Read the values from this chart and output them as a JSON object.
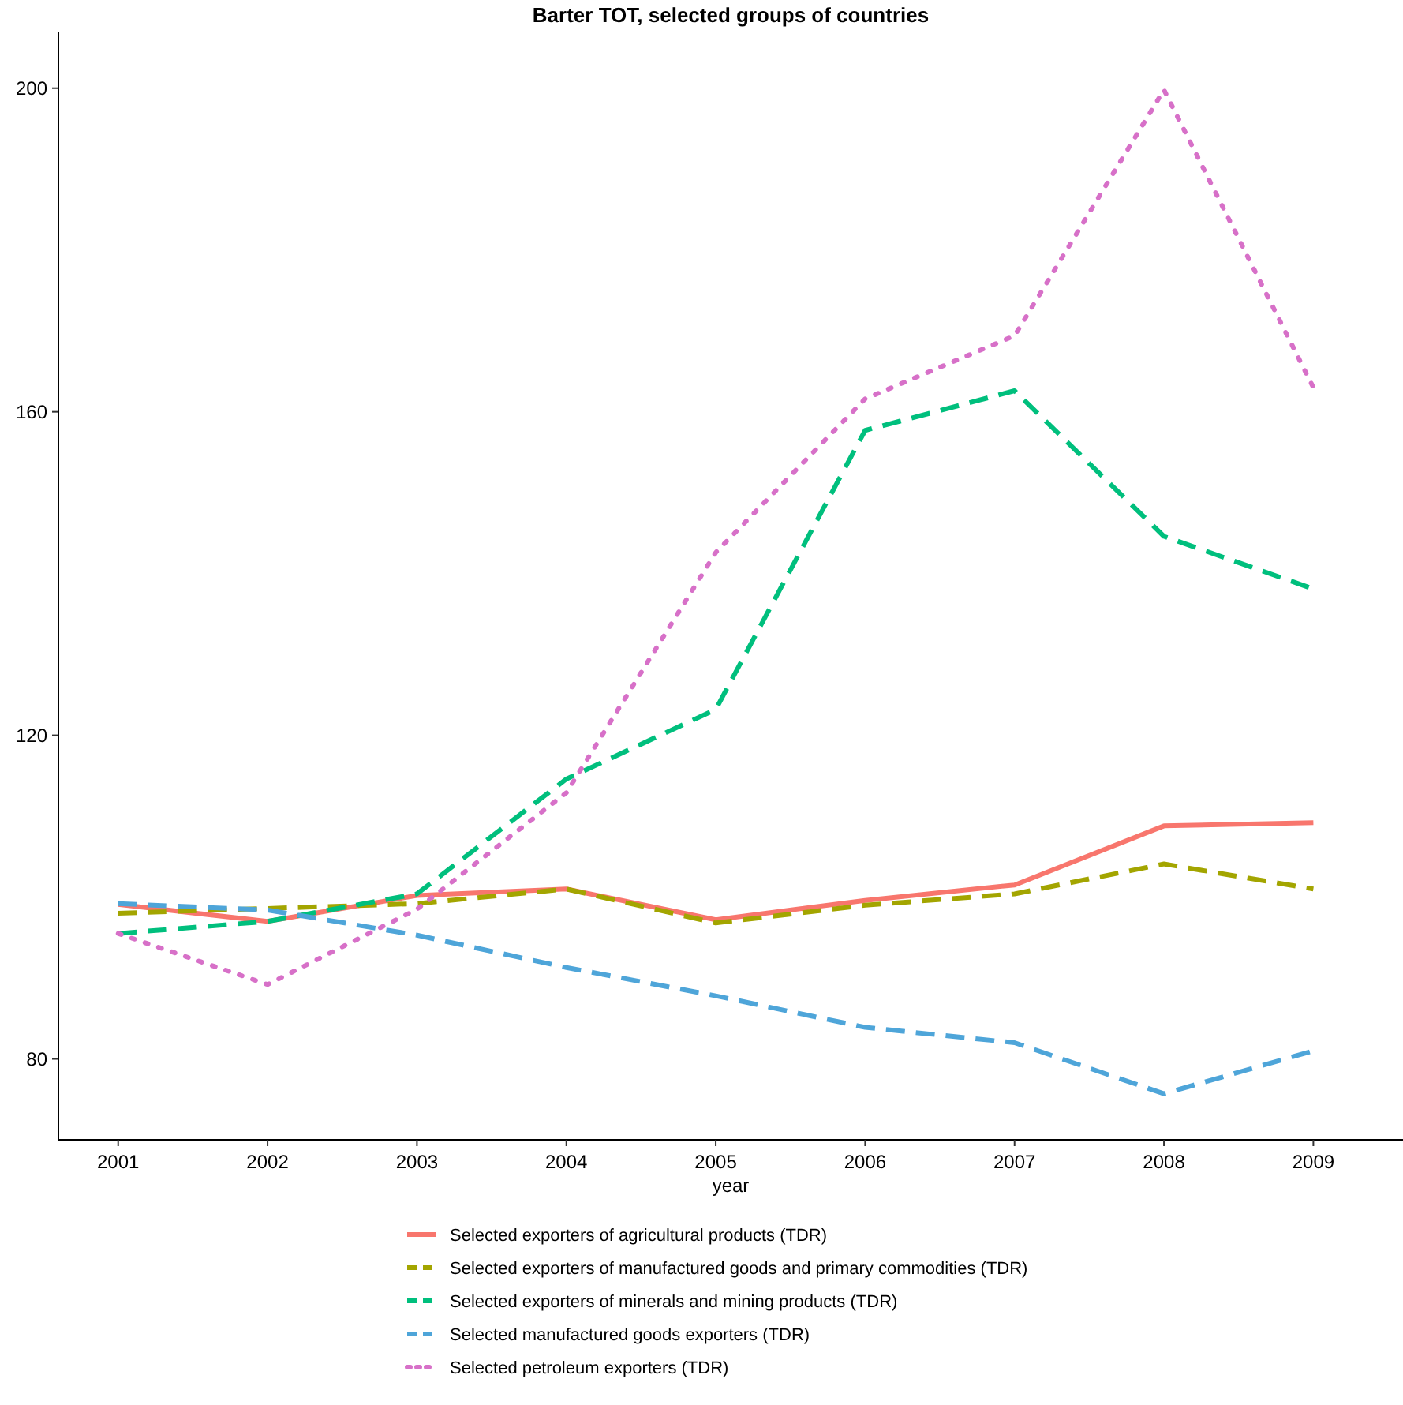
{
  "chart_data": {
    "type": "line",
    "title": "Barter TOT, selected groups of countries",
    "xlabel": "year",
    "x": [
      2001,
      2002,
      2003,
      2004,
      2005,
      2006,
      2007,
      2008,
      2009
    ],
    "xlim": [
      2000.6,
      2009.6
    ],
    "xticks": [
      2001,
      2002,
      2003,
      2004,
      2005,
      2006,
      2007,
      2008,
      2009
    ],
    "ylim": [
      70,
      207
    ],
    "yticks": [
      80,
      120,
      160,
      200
    ],
    "grid": false,
    "legend": "bottom",
    "series": [
      {
        "name": "Selected exporters of agricultural products (TDR)",
        "color": "#f8766d",
        "line_style": "solid",
        "values": [
          99.1,
          97.0,
          100.2,
          101.0,
          97.2,
          99.6,
          101.5,
          108.8,
          109.2
        ]
      },
      {
        "name": "Selected exporters of manufactured goods and primary commodities (TDR)",
        "color": "#a3a500",
        "line_style": "dashed",
        "values": [
          98.0,
          98.6,
          99.2,
          101.0,
          96.8,
          99.0,
          100.4,
          104.1,
          101.0
        ]
      },
      {
        "name": "Selected exporters of minerals and mining products (TDR)",
        "color": "#00bf7d",
        "line_style": "dashed",
        "values": [
          95.5,
          97.0,
          100.4,
          114.6,
          123.2,
          157.7,
          162.6,
          144.6,
          138.1
        ]
      },
      {
        "name": "Selected manufactured goods exporters (TDR)",
        "color": "#4ea5d9",
        "line_style": "dashed",
        "values": [
          99.2,
          98.4,
          95.3,
          91.3,
          87.8,
          83.9,
          82.0,
          75.7,
          81.0
        ]
      },
      {
        "name": "Selected petroleum exporters (TDR)",
        "color": "#d770c8",
        "line_style": "dotted",
        "values": [
          95.5,
          89.2,
          98.5,
          112.9,
          142.6,
          161.6,
          169.4,
          199.8,
          163.0
        ]
      }
    ]
  }
}
